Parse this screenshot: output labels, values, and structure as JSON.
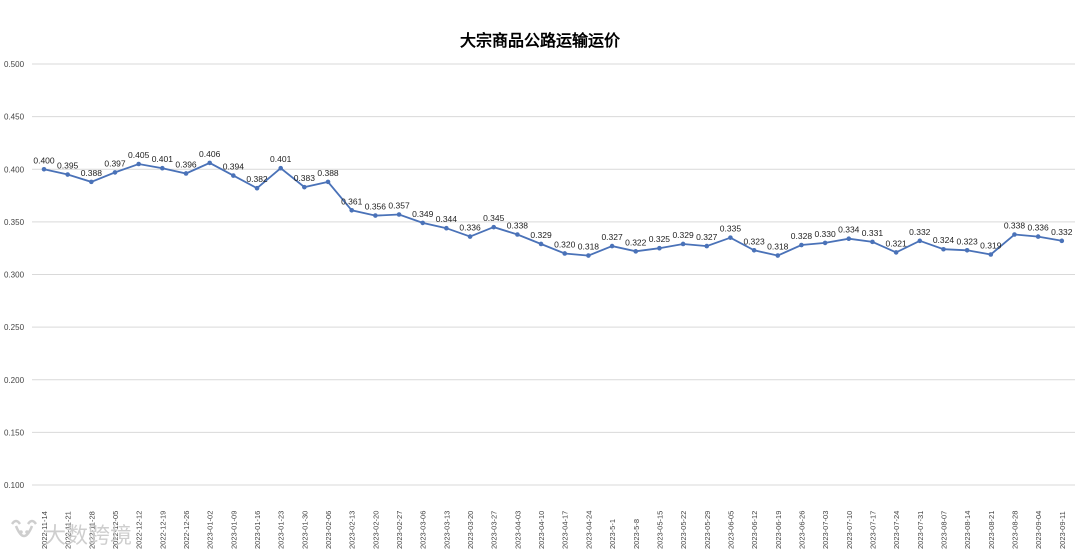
{
  "chart_data": {
    "type": "line",
    "title": "大宗商品公路运输运价",
    "xlabel": "",
    "ylabel": "",
    "ylim": [
      0.1,
      0.5
    ],
    "yticks": [
      "0.100",
      "0.150",
      "0.200",
      "0.250",
      "0.300",
      "0.350",
      "0.400",
      "0.450",
      "0.500"
    ],
    "grid": true,
    "line_color": "#4a72b8",
    "categories": [
      "2022-11-14",
      "2022-11-21",
      "2022-11-28",
      "2022-12-05",
      "2022-12-12",
      "2022-12-19",
      "2022-12-26",
      "2023-01-02",
      "2023-01-09",
      "2023-01-16",
      "2023-01-23",
      "2023-01-30",
      "2023-02-06",
      "2023-02-13",
      "2023-02-20",
      "2023-02-27",
      "2023-03-06",
      "2023-03-13",
      "2023-03-20",
      "2023-03-27",
      "2023-04-03",
      "2023-04-10",
      "2023-04-17",
      "2023-04-24",
      "2023-5-1",
      "2023-5-8",
      "2023-05-15",
      "2023-05-22",
      "2023-05-29",
      "2023-06-05",
      "2023-06-12",
      "2023-06-19",
      "2023-06-26",
      "2023-07-03",
      "2023-07-10",
      "2023-07-17",
      "2023-07-24",
      "2023-07-31",
      "2023-08-07",
      "2023-08-14",
      "2023-08-21",
      "2023-08-28",
      "2023-09-04",
      "2023-09-11"
    ],
    "series": [
      {
        "name": "",
        "values": [
          0.4,
          0.395,
          0.388,
          0.397,
          0.405,
          0.401,
          0.396,
          0.406,
          0.394,
          0.382,
          0.401,
          0.383,
          0.388,
          0.361,
          0.356,
          0.357,
          0.349,
          0.344,
          0.336,
          0.345,
          0.338,
          0.329,
          0.32,
          0.318,
          0.327,
          0.322,
          0.325,
          0.329,
          0.327,
          0.335,
          0.323,
          0.318,
          0.328,
          0.33,
          0.334,
          0.331,
          0.321,
          0.332,
          0.324,
          0.323,
          0.319,
          0.338,
          0.336,
          0.332
        ],
        "labels": [
          "0.400",
          "0.395",
          "0.388",
          "0.397",
          "0.405",
          "0.401",
          "0.396",
          "0.406",
          "0.394",
          "0.382",
          "0.401",
          "0.383",
          "0.388",
          "0.361",
          "0.356",
          "0.357",
          "0.349",
          "0.344",
          "0.336",
          "0.345",
          "0.338",
          "0.329",
          "0.320",
          "0.318",
          "0.327",
          "0.322",
          "0.325",
          "0.329",
          "0.327",
          "0.335",
          "0.323",
          "0.318",
          "0.328",
          "0.330",
          "0.334",
          "0.331",
          "0.321",
          "0.332",
          "0.324",
          "0.323",
          "0.319",
          "0.338",
          "0.336",
          "0.332"
        ]
      }
    ]
  },
  "watermark": {
    "text": "大数跨境",
    "icon": "ox-head-logo-icon"
  }
}
